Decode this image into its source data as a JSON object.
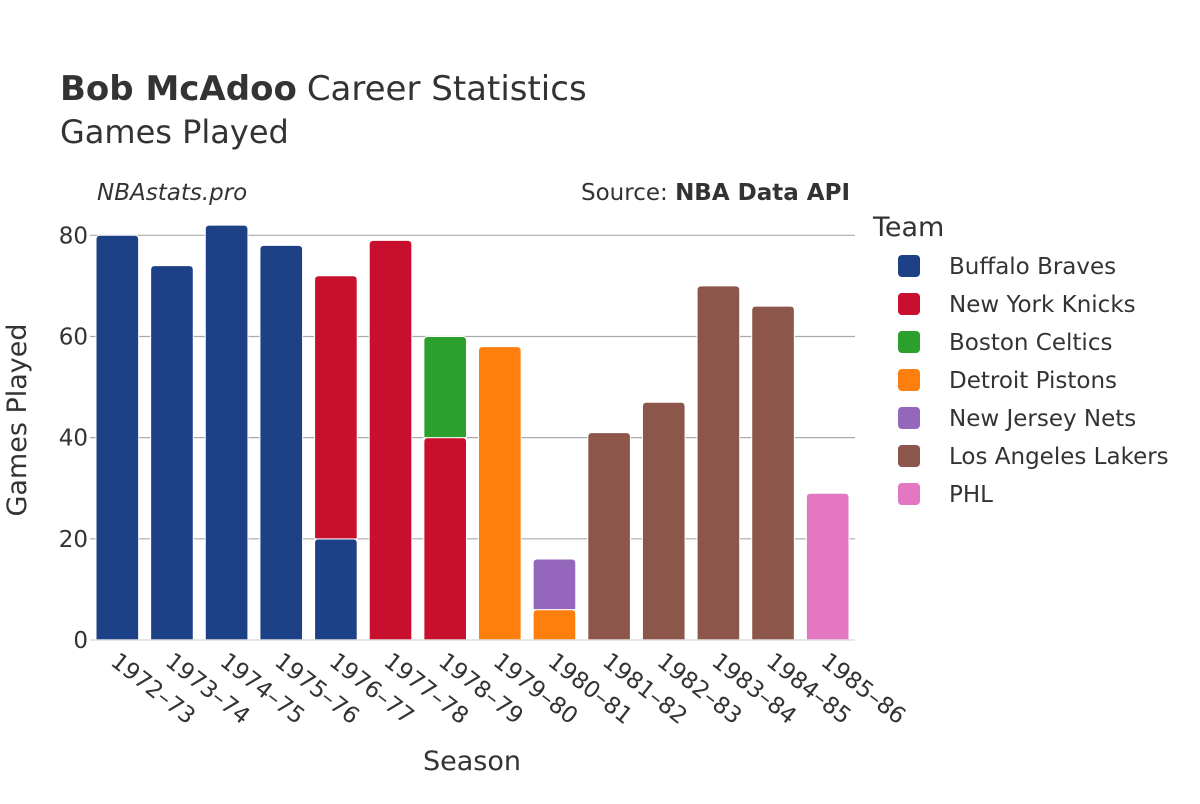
{
  "header": {
    "title_bold": "Bob McAdoo",
    "title_rest": "Career Statistics",
    "subtitle": "Games Played"
  },
  "watermark": "NBAstats.pro",
  "source": {
    "prefix": "Source: ",
    "name": "NBA Data API"
  },
  "legend_title": "Team",
  "chart_data": {
    "type": "bar",
    "stacked": true,
    "xlabel": "Season",
    "ylabel": "Games Played",
    "ylim": [
      0,
      85
    ],
    "yticks": [
      0,
      20,
      40,
      60,
      80
    ],
    "grid": true,
    "legend_position": "right",
    "categories": [
      "1972–73",
      "1973–74",
      "1974–75",
      "1975–76",
      "1976–77",
      "1977–78",
      "1978–79",
      "1979–80",
      "1980–81",
      "1981–82",
      "1982–83",
      "1983–84",
      "1984–85",
      "1985–86"
    ],
    "series": [
      {
        "name": "Buffalo Braves",
        "color": "#1c4186",
        "values": [
          80,
          74,
          82,
          78,
          20,
          0,
          0,
          0,
          0,
          0,
          0,
          0,
          0,
          0
        ]
      },
      {
        "name": "New York Knicks",
        "color": "#c8102e",
        "values": [
          0,
          0,
          0,
          0,
          52,
          79,
          40,
          0,
          0,
          0,
          0,
          0,
          0,
          0
        ]
      },
      {
        "name": "Boston Celtics",
        "color": "#2ca02c",
        "values": [
          0,
          0,
          0,
          0,
          0,
          0,
          20,
          0,
          0,
          0,
          0,
          0,
          0,
          0
        ]
      },
      {
        "name": "Detroit Pistons",
        "color": "#ff7f0e",
        "values": [
          0,
          0,
          0,
          0,
          0,
          0,
          0,
          58,
          6,
          0,
          0,
          0,
          0,
          0
        ]
      },
      {
        "name": "New Jersey Nets",
        "color": "#9467bd",
        "values": [
          0,
          0,
          0,
          0,
          0,
          0,
          0,
          0,
          10,
          0,
          0,
          0,
          0,
          0
        ]
      },
      {
        "name": "Los Angeles Lakers",
        "color": "#8c564b",
        "values": [
          0,
          0,
          0,
          0,
          0,
          0,
          0,
          0,
          0,
          41,
          47,
          70,
          66,
          0
        ]
      },
      {
        "name": "PHL",
        "color": "#e377c2",
        "values": [
          0,
          0,
          0,
          0,
          0,
          0,
          0,
          0,
          0,
          0,
          0,
          0,
          0,
          29
        ]
      }
    ]
  }
}
